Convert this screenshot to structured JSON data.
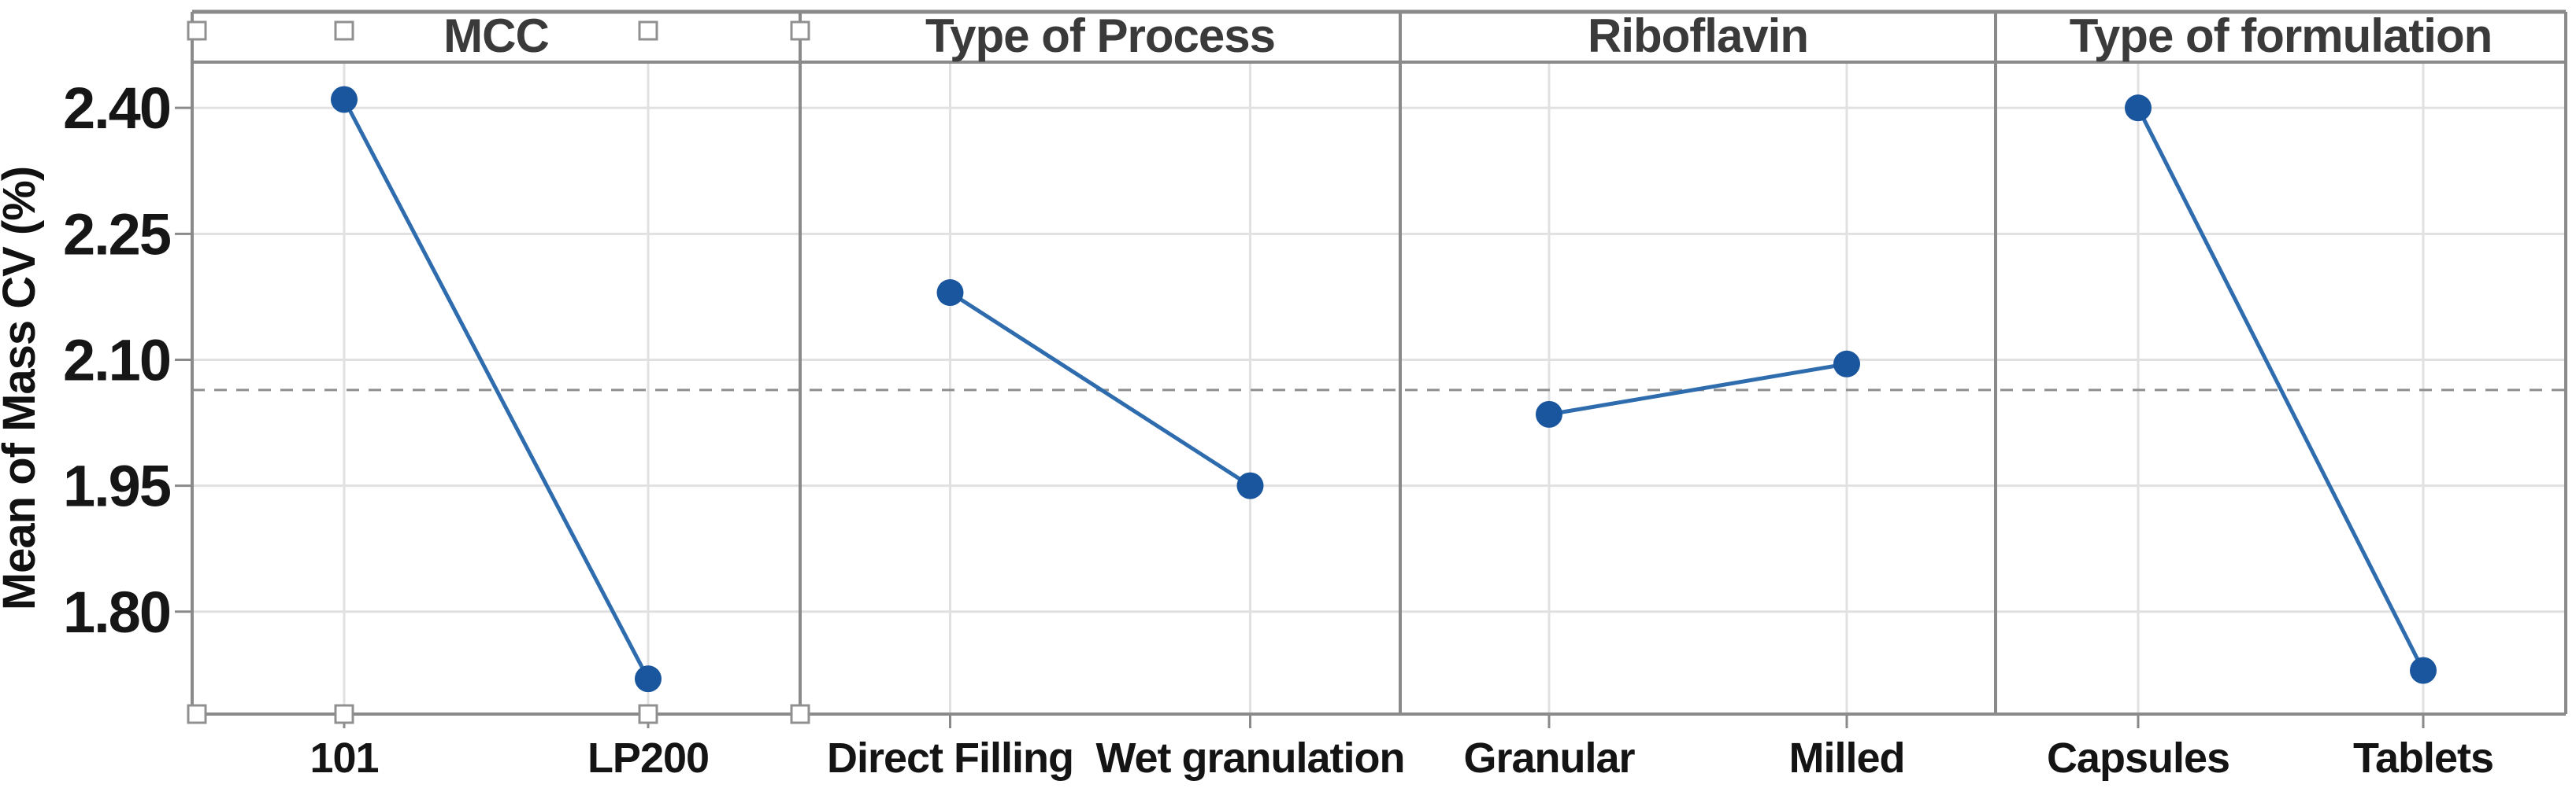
{
  "chart_data": {
    "type": "line",
    "subtype": "main-effects-plot",
    "ylabel": "Mean of Mass CV (%)",
    "ytick_labels": [
      "2.40",
      "2.25",
      "2.10",
      "1.95",
      "1.80"
    ],
    "ytick_values": [
      2.4,
      2.25,
      2.1,
      1.95,
      1.8
    ],
    "ylim": [
      1.678,
      2.4545
    ],
    "grid": true,
    "reference_line": {
      "value": 2.064,
      "style": "dashed"
    },
    "panels": [
      {
        "title": "MCC",
        "categories": [
          "101",
          "LP200"
        ],
        "values": [
          2.41,
          1.72
        ]
      },
      {
        "title": "Type of Process",
        "categories": [
          "Direct Filling",
          "Wet granulation"
        ],
        "values": [
          2.18,
          1.95
        ]
      },
      {
        "title": "Riboflavin",
        "categories": [
          "Granular",
          "Milled"
        ],
        "values": [
          2.035,
          2.095
        ]
      },
      {
        "title": "Type of formulation",
        "categories": [
          "Capsules",
          "Tablets"
        ],
        "values": [
          2.4,
          1.73
        ]
      }
    ]
  },
  "colors": {
    "background": "#FFFFFF",
    "marker": "#1A569E",
    "line": "#2E6CAE",
    "grid": "#E1E1E1",
    "frame": "#8A8A8A",
    "reference": "#8F8F8F",
    "header_text": "#3A3A3A",
    "label_text": "#141414",
    "handle_fill": "#FFFFFF",
    "handle_border": "#909090"
  },
  "selection_handles": {
    "count": 8,
    "location": "top and bottom edges of first panel"
  }
}
